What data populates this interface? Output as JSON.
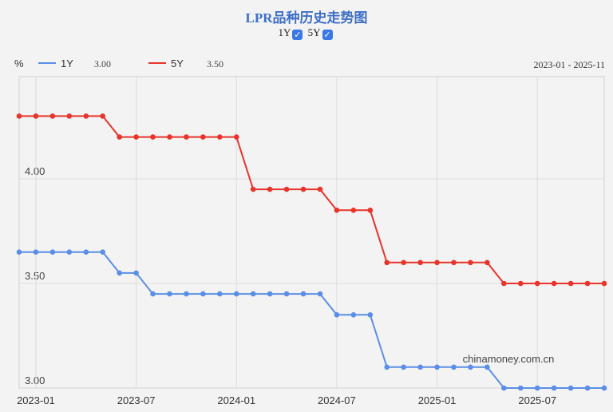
{
  "title": "LPR品种历史走势图",
  "toggles": [
    {
      "label": "1Y",
      "checked": true
    },
    {
      "label": "5Y",
      "checked": true
    }
  ],
  "legend": {
    "unit": "%",
    "items": [
      {
        "name": "1Y",
        "latest": "3.00",
        "color": "#5b8ee6"
      },
      {
        "name": "5Y",
        "latest": "3.50",
        "color": "#e8342a"
      }
    ]
  },
  "date_range": "2023-01 - 2025-11",
  "watermark": "chinamoney.com.cn",
  "chart_data": {
    "type": "line",
    "title": "LPR品种历史走势图",
    "xlabel": "",
    "ylabel": "%",
    "ylim": [
      3.0,
      4.49
    ],
    "yticks": [
      "3.00",
      "3.50",
      "4.00"
    ],
    "xticks": [
      "2023-01",
      "2023-07",
      "2024-01",
      "2024-07",
      "2025-01",
      "2025-07"
    ],
    "grid": true,
    "legend_position": "top-left",
    "x": [
      "2022-12",
      "2023-01",
      "2023-02",
      "2023-03",
      "2023-04",
      "2023-05",
      "2023-06",
      "2023-07",
      "2023-08",
      "2023-09",
      "2023-10",
      "2023-11",
      "2023-12",
      "2024-01",
      "2024-02",
      "2024-03",
      "2024-04",
      "2024-05",
      "2024-06",
      "2024-07",
      "2024-08",
      "2024-09",
      "2024-10",
      "2024-11",
      "2024-12",
      "2025-01",
      "2025-02",
      "2025-03",
      "2025-04",
      "2025-05",
      "2025-06",
      "2025-07",
      "2025-08",
      "2025-09",
      "2025-10",
      "2025-11"
    ],
    "series": [
      {
        "name": "1Y",
        "color": "#5b8ee6",
        "values": [
          3.65,
          3.65,
          3.65,
          3.65,
          3.65,
          3.65,
          3.55,
          3.55,
          3.45,
          3.45,
          3.45,
          3.45,
          3.45,
          3.45,
          3.45,
          3.45,
          3.45,
          3.45,
          3.45,
          3.35,
          3.35,
          3.35,
          3.1,
          3.1,
          3.1,
          3.1,
          3.1,
          3.1,
          3.1,
          3.0,
          3.0,
          3.0,
          3.0,
          3.0,
          3.0,
          3.0
        ]
      },
      {
        "name": "5Y",
        "color": "#e8342a",
        "values": [
          4.3,
          4.3,
          4.3,
          4.3,
          4.3,
          4.3,
          4.2,
          4.2,
          4.2,
          4.2,
          4.2,
          4.2,
          4.2,
          4.2,
          3.95,
          3.95,
          3.95,
          3.95,
          3.95,
          3.85,
          3.85,
          3.85,
          3.6,
          3.6,
          3.6,
          3.6,
          3.6,
          3.6,
          3.6,
          3.5,
          3.5,
          3.5,
          3.5,
          3.5,
          3.5,
          3.5
        ]
      }
    ]
  }
}
